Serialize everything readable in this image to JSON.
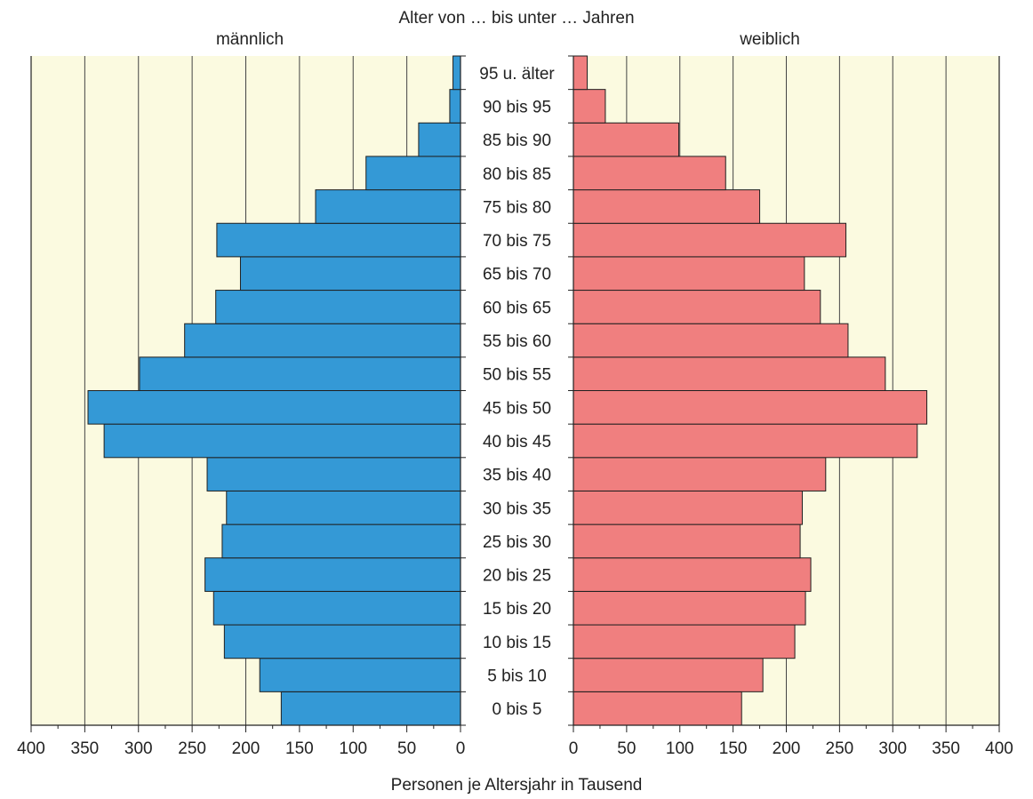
{
  "chart_data": {
    "type": "bar",
    "orientation": "horizontal",
    "subtype": "population-pyramid",
    "title": "Alter von … bis unter … Jahren",
    "xlabel": "Personen je Altersjahr in Tausend",
    "categories": [
      "0 bis 5",
      "5 bis 10",
      "10 bis 15",
      "15 bis 20",
      "20 bis 25",
      "25 bis 30",
      "30 bis 35",
      "35 bis 40",
      "40 bis 45",
      "45 bis 50",
      "50 bis 55",
      "55 bis 60",
      "60 bis 65",
      "65 bis 70",
      "70 bis 75",
      "75 bis 80",
      "80 bis 85",
      "85 bis 90",
      "90 bis 95",
      "95 u. älter"
    ],
    "series": [
      {
        "name": "männlich",
        "side": "left",
        "color": "#3499d6",
        "values": [
          167,
          187,
          220,
          230,
          238,
          222,
          218,
          236,
          332,
          347,
          299,
          257,
          228,
          205,
          227,
          135,
          88,
          39,
          10,
          7
        ]
      },
      {
        "name": "weiblich",
        "side": "right",
        "color": "#f07f7f",
        "values": [
          158,
          178,
          208,
          218,
          223,
          213,
          215,
          237,
          323,
          332,
          293,
          258,
          232,
          217,
          256,
          175,
          143,
          99,
          30,
          13
        ]
      }
    ],
    "xlim": [
      0,
      400
    ],
    "ticks": [
      0,
      50,
      100,
      150,
      200,
      250,
      300,
      350,
      400
    ],
    "tick_labels_left": [
      "400",
      "350",
      "300",
      "250",
      "200",
      "150",
      "100",
      "50",
      "0"
    ],
    "tick_labels_right": [
      "0",
      "50",
      "100",
      "150",
      "200",
      "250",
      "300",
      "350",
      "400"
    ],
    "background_color": "#fbfae0",
    "grid": true
  }
}
